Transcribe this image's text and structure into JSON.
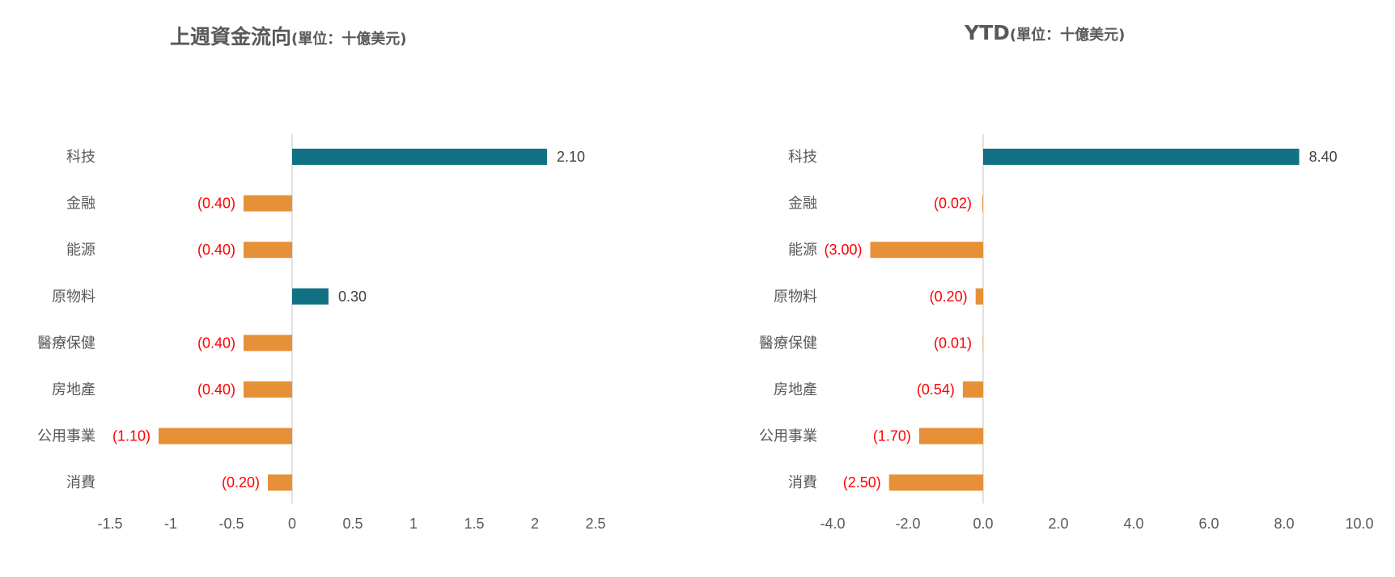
{
  "colors": {
    "positive": "#127085",
    "negative": "#E69138",
    "positive_label": "#404040",
    "negative_label": "#FF0000",
    "text": "#595959",
    "axis": "#D9D9D9"
  },
  "chart_data": [
    {
      "type": "bar",
      "orientation": "horizontal",
      "title": "上週資金流向",
      "title_unit": "(單位：十億美元)",
      "categories": [
        "科技",
        "金融",
        "能源",
        "原物料",
        "醫療保健",
        "房地產",
        "公用事業",
        "消費"
      ],
      "values": [
        2.1,
        -0.4,
        -0.4,
        0.3,
        -0.4,
        -0.4,
        -1.1,
        -0.2
      ],
      "data_labels": [
        "2.10",
        "(0.40)",
        "(0.40)",
        "0.30",
        "(0.40)",
        "(0.40)",
        "(1.10)",
        "(0.20)"
      ],
      "xlim": [
        -1.5,
        2.5
      ],
      "xticks": [
        -1.5,
        -1,
        -0.5,
        0,
        0.5,
        1,
        1.5,
        2,
        2.5
      ],
      "xtick_labels": [
        "-1.5",
        "-1",
        "-0.5",
        "0",
        "0.5",
        "1",
        "1.5",
        "2",
        "2.5"
      ],
      "grid": false,
      "legend": "none"
    },
    {
      "type": "bar",
      "orientation": "horizontal",
      "title": "YTD",
      "title_unit": "(單位：十億美元)",
      "categories": [
        "科技",
        "金融",
        "能源",
        "原物料",
        "醫療保健",
        "房地產",
        "公用事業",
        "消費"
      ],
      "values": [
        8.4,
        -0.02,
        -3.0,
        -0.2,
        -0.01,
        -0.54,
        -1.7,
        -2.5
      ],
      "data_labels": [
        "8.40",
        "(0.02)",
        "(3.00)",
        "(0.20)",
        "(0.01)",
        "(0.54)",
        "(1.70)",
        "(2.50)"
      ],
      "xlim": [
        -4.0,
        10.0
      ],
      "xticks": [
        -4,
        -2,
        0,
        2,
        4,
        6,
        8,
        10
      ],
      "xtick_labels": [
        "-4.0",
        "-2.0",
        "0.0",
        "2.0",
        "4.0",
        "6.0",
        "8.0",
        "10.0"
      ],
      "grid": false,
      "legend": "none"
    }
  ]
}
